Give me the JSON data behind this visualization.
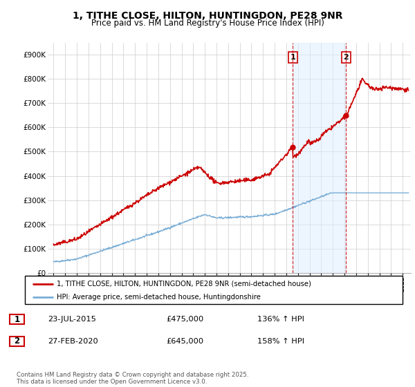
{
  "title_line1": "1, TITHE CLOSE, HILTON, HUNTINGDON, PE28 9NR",
  "title_line2": "Price paid vs. HM Land Registry's House Price Index (HPI)",
  "background_color": "#ffffff",
  "grid_color": "#cccccc",
  "red_line_color": "#cc0000",
  "blue_line_color": "#7aaed6",
  "vline_color": "#cc0000",
  "shade_color": "#ddeeff",
  "marker1_year": 2015.55,
  "marker2_year": 2020.13,
  "legend_entries": [
    "1, TITHE CLOSE, HILTON, HUNTINGDON, PE28 9NR (semi-detached house)",
    "HPI: Average price, semi-detached house, Huntingdonshire"
  ],
  "table_rows": [
    [
      "1",
      "23-JUL-2015",
      "£475,000",
      "136% ↑ HPI"
    ],
    [
      "2",
      "27-FEB-2020",
      "£645,000",
      "158% ↑ HPI"
    ]
  ],
  "footnote": "Contains HM Land Registry data © Crown copyright and database right 2025.\nThis data is licensed under the Open Government Licence v3.0.",
  "ylim": [
    0,
    950000
  ],
  "xlim_start": 1994.5,
  "xlim_end": 2025.7,
  "ytick_values": [
    0,
    100000,
    200000,
    300000,
    400000,
    500000,
    600000,
    700000,
    800000,
    900000
  ],
  "ytick_labels": [
    "£0",
    "£100K",
    "£200K",
    "£300K",
    "£400K",
    "£500K",
    "£600K",
    "£700K",
    "£800K",
    "£900K"
  ],
  "xtick_values": [
    1995,
    1996,
    1997,
    1998,
    1999,
    2000,
    2001,
    2002,
    2003,
    2004,
    2005,
    2006,
    2007,
    2008,
    2009,
    2010,
    2011,
    2012,
    2013,
    2014,
    2015,
    2016,
    2017,
    2018,
    2019,
    2020,
    2021,
    2022,
    2023,
    2024,
    2025
  ]
}
